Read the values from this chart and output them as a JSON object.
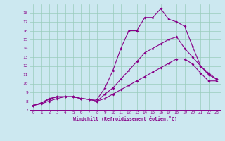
{
  "bg_color": "#cce8f0",
  "line_color": "#880088",
  "grid_color": "#99ccbb",
  "xlabel": "Windchill (Refroidissement éolien,°C)",
  "ylim": [
    7,
    19
  ],
  "xlim": [
    -0.5,
    23.5
  ],
  "yticks": [
    7,
    8,
    9,
    10,
    11,
    12,
    13,
    14,
    15,
    16,
    17,
    18
  ],
  "xticks": [
    0,
    1,
    2,
    3,
    4,
    5,
    6,
    7,
    8,
    9,
    10,
    11,
    12,
    13,
    14,
    15,
    16,
    17,
    18,
    19,
    20,
    21,
    22,
    23
  ],
  "line1_x": [
    0,
    1,
    2,
    3,
    4,
    5,
    6,
    7,
    8,
    9,
    10,
    11,
    12,
    13,
    14,
    15,
    16,
    17,
    18,
    19,
    20,
    21,
    22,
    23
  ],
  "line1_y": [
    7.5,
    7.8,
    8.3,
    8.5,
    8.5,
    8.5,
    8.3,
    8.2,
    8.2,
    9.5,
    11.5,
    14.0,
    16.0,
    16.0,
    17.5,
    17.5,
    18.5,
    17.3,
    17.0,
    16.5,
    14.2,
    12.0,
    11.0,
    10.5
  ],
  "line2_x": [
    0,
    1,
    2,
    3,
    4,
    5,
    6,
    7,
    8,
    9,
    10,
    11,
    12,
    13,
    14,
    15,
    16,
    17,
    18,
    19,
    20,
    21,
    22,
    23
  ],
  "line2_y": [
    7.5,
    7.8,
    8.2,
    8.5,
    8.5,
    8.5,
    8.3,
    8.2,
    8.0,
    8.8,
    9.5,
    10.5,
    11.5,
    12.5,
    13.5,
    14.0,
    14.5,
    15.0,
    15.3,
    14.0,
    13.0,
    12.0,
    11.2,
    10.5
  ],
  "line3_x": [
    0,
    1,
    2,
    3,
    4,
    5,
    6,
    7,
    8,
    9,
    10,
    11,
    12,
    13,
    14,
    15,
    16,
    17,
    18,
    19,
    20,
    21,
    22,
    23
  ],
  "line3_y": [
    7.5,
    7.7,
    8.0,
    8.3,
    8.5,
    8.5,
    8.3,
    8.2,
    8.0,
    8.3,
    8.8,
    9.3,
    9.8,
    10.3,
    10.8,
    11.3,
    11.8,
    12.3,
    12.8,
    12.8,
    12.2,
    11.2,
    10.3,
    10.3
  ]
}
